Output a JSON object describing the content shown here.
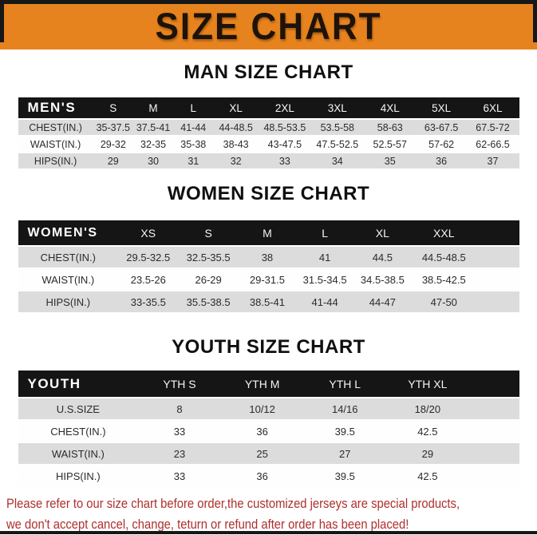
{
  "banner": {
    "title": "SIZE CHART"
  },
  "colors": {
    "banner_orange": "#E6831E",
    "bar_black": "#171717",
    "table_header_black": "#151515",
    "row_stripe_gray": "#DCDCDC",
    "footer_red": "#AE302C"
  },
  "sections": [
    {
      "title": "MAN SIZE CHART",
      "table": {
        "header": [
          "MEN'S",
          "S",
          "M",
          "L",
          "XL",
          "2XL",
          "3XL",
          "4XL",
          "5XL",
          "6XL"
        ],
        "rows": [
          [
            "CHEST(IN.)",
            "35-37.5",
            "37.5-41",
            "41-44",
            "44-48.5",
            "48.5-53.5",
            "53.5-58",
            "58-63",
            "63-67.5",
            "67.5-72"
          ],
          [
            "WAIST(IN.)",
            "29-32",
            "32-35",
            "35-38",
            "38-43",
            "43-47.5",
            "47.5-52.5",
            "52.5-57",
            "57-62",
            "62-66.5"
          ],
          [
            "HIPS(IN.)",
            "29",
            "30",
            "31",
            "32",
            "33",
            "34",
            "35",
            "36",
            "37"
          ]
        ]
      }
    },
    {
      "title": "WOMEN SIZE CHART",
      "table": {
        "header": [
          "WOMEN'S",
          "XS",
          "S",
          "M",
          "L",
          "XL",
          "XXL"
        ],
        "rows": [
          [
            "CHEST(IN.)",
            "29.5-32.5",
            "32.5-35.5",
            "38",
            "41",
            "44.5",
            "44.5-48.5"
          ],
          [
            "WAIST(IN.)",
            "23.5-26",
            "26-29",
            "29-31.5",
            "31.5-34.5",
            "34.5-38.5",
            "38.5-42.5"
          ],
          [
            "HIPS(IN.)",
            "33-35.5",
            "35.5-38.5",
            "38.5-41",
            "41-44",
            "44-47",
            "47-50"
          ]
        ]
      }
    },
    {
      "title": "YOUTH SIZE CHART",
      "table": {
        "header": [
          "YOUTH",
          "YTH S",
          "YTH M",
          "YTH L",
          "YTH XL"
        ],
        "rows": [
          [
            "U.S.SIZE",
            "8",
            "10/12",
            "14/16",
            "18/20"
          ],
          [
            "CHEST(IN.)",
            "33",
            "36",
            "39.5",
            "42.5"
          ],
          [
            "WAIST(IN.)",
            "23",
            "25",
            "27",
            "29"
          ],
          [
            "HIPS(IN.)",
            "33",
            "36",
            "39.5",
            "42.5"
          ]
        ]
      }
    }
  ],
  "footer": {
    "line1": "Please refer to our size chart before order,the customized jerseys are special products,",
    "line2": "we don't accept cancel, change, teturn or refund after order has been placed!"
  }
}
